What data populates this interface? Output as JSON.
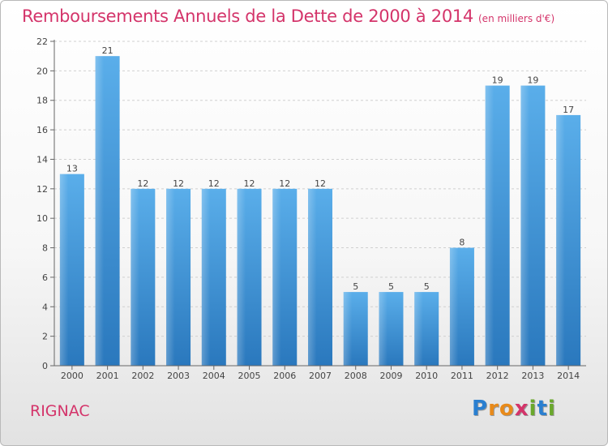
{
  "chart_data": {
    "type": "bar",
    "title": "Remboursements Annuels de la Dette de 2000 à 2014",
    "subtitle": "(en milliers d'€)",
    "categories": [
      "2000",
      "2001",
      "2002",
      "2003",
      "2004",
      "2005",
      "2006",
      "2007",
      "2008",
      "2009",
      "2010",
      "2011",
      "2012",
      "2013",
      "2014"
    ],
    "values": [
      13,
      21,
      12,
      12,
      12,
      12,
      12,
      12,
      5,
      5,
      5,
      8,
      19,
      19,
      17
    ],
    "ylim": [
      0,
      22
    ],
    "yticks": [
      0,
      2,
      4,
      6,
      8,
      10,
      12,
      14,
      16,
      18,
      20,
      22
    ],
    "grid": true,
    "bar_color": "#3a8fd4",
    "title_color": "#d4346a"
  },
  "commune": "RIGNAC",
  "logo": {
    "letters": [
      "P",
      "r",
      "o",
      "x",
      "i",
      "t",
      "i"
    ],
    "colors": [
      "#2a7fd0",
      "#e88a1a",
      "#e88a1a",
      "#d4346a",
      "#6aa82c",
      "#2a7fd0",
      "#6aa82c"
    ]
  }
}
